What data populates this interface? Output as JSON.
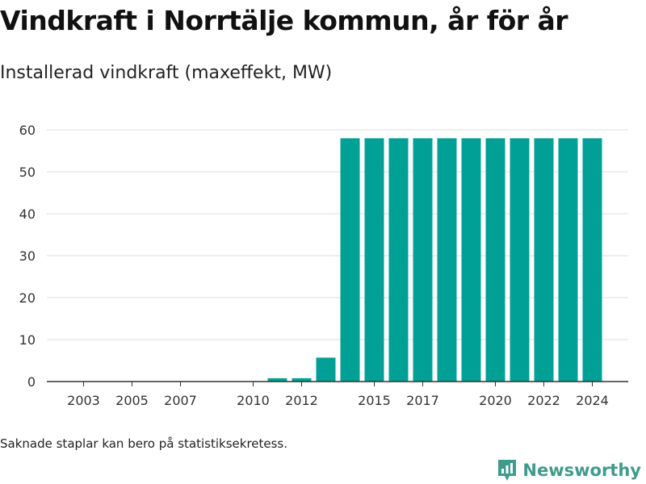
{
  "title": "Vindkraft i Norrtälje kommun, år för år",
  "subtitle": "Installerad vindkraft (maxeffekt, MW)",
  "footnote": "Saknade staplar kan bero på statistiksekretess.",
  "brand": "Newsworthy",
  "colors": {
    "bar": "#00a096",
    "grid": "#dddddd",
    "axis": "#333333",
    "brand": "#3f9c8c"
  },
  "chart_data": {
    "type": "bar",
    "title": "Vindkraft i Norrtälje kommun, år för år",
    "subtitle": "Installerad vindkraft (maxeffekt, MW)",
    "xlabel": "",
    "ylabel": "",
    "categories": [
      "2003",
      "2004",
      "2005",
      "2006",
      "2007",
      "2008",
      "2009",
      "2010",
      "2011",
      "2012",
      "2013",
      "2014",
      "2015",
      "2016",
      "2017",
      "2018",
      "2019",
      "2020",
      "2021",
      "2022",
      "2023",
      "2024"
    ],
    "values": [
      0,
      0,
      0,
      0,
      0,
      0,
      0,
      0,
      0.8,
      0.8,
      5.7,
      58,
      58,
      58,
      58,
      58,
      58,
      58,
      58,
      58,
      58,
      58
    ],
    "x_tick_labels": [
      "2003",
      "2005",
      "2007",
      "2010",
      "2012",
      "2015",
      "2017",
      "2020",
      "2022",
      "2024"
    ],
    "y_ticks": [
      0,
      10,
      20,
      30,
      40,
      50,
      60
    ],
    "ylim": [
      0,
      60
    ],
    "grid": true,
    "legend": "none"
  }
}
